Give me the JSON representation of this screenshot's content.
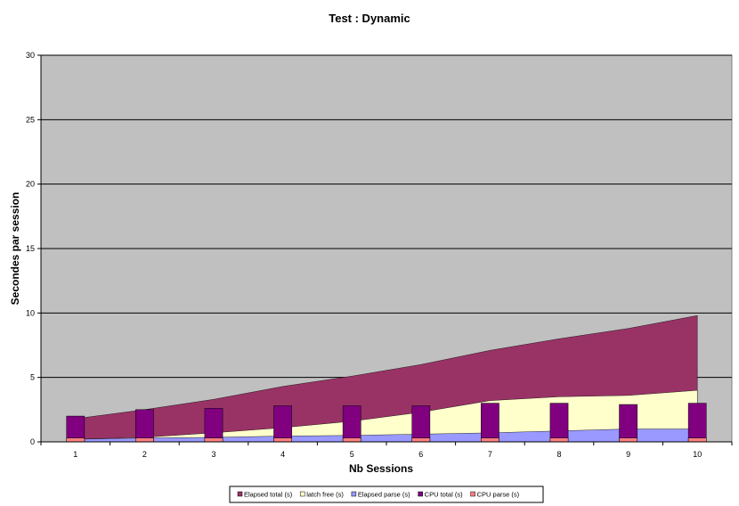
{
  "chart_data": {
    "type": "area",
    "title": "Test : Dynamic",
    "xlabel": "Nb Sessions",
    "ylabel": "Secondes par session",
    "x": [
      1,
      2,
      3,
      4,
      5,
      6,
      7,
      8,
      9,
      10
    ],
    "ylim": [
      0,
      30
    ],
    "yticks": [
      0,
      5,
      10,
      15,
      20,
      25,
      30
    ],
    "grid": true,
    "legend_position": "bottom",
    "plot_background": "#C0C0C0",
    "areas": [
      {
        "name": "Elapsed total (s)",
        "color": "#993366",
        "values": [
          1.8,
          2.5,
          3.3,
          4.3,
          5.1,
          6.0,
          7.1,
          8.0,
          8.8,
          9.8
        ]
      },
      {
        "name": "latch free (s)",
        "color": "#FFFFCC",
        "values": [
          0.2,
          0.35,
          0.7,
          1.1,
          1.6,
          2.3,
          3.2,
          3.5,
          3.6,
          4.0
        ]
      },
      {
        "name": "Elapsed parse (s)",
        "color": "#9999FF",
        "values": [
          0.2,
          0.3,
          0.35,
          0.45,
          0.5,
          0.6,
          0.7,
          0.85,
          1.0,
          1.0
        ]
      }
    ],
    "bars": [
      {
        "name": "CPU  total (s)",
        "color": "#800080",
        "values": [
          2.0,
          2.5,
          2.6,
          2.8,
          2.8,
          2.8,
          3.0,
          3.0,
          2.9,
          3.0
        ]
      },
      {
        "name": "CPU parse (s)",
        "color": "#FF8080",
        "values": [
          0.3,
          0.3,
          0.3,
          0.3,
          0.3,
          0.3,
          0.3,
          0.3,
          0.3,
          0.3
        ]
      }
    ],
    "legend": [
      "Elapsed total (s)",
      "latch free (s)",
      "Elapsed parse (s)",
      "CPU  total (s)",
      "CPU parse (s)"
    ]
  }
}
